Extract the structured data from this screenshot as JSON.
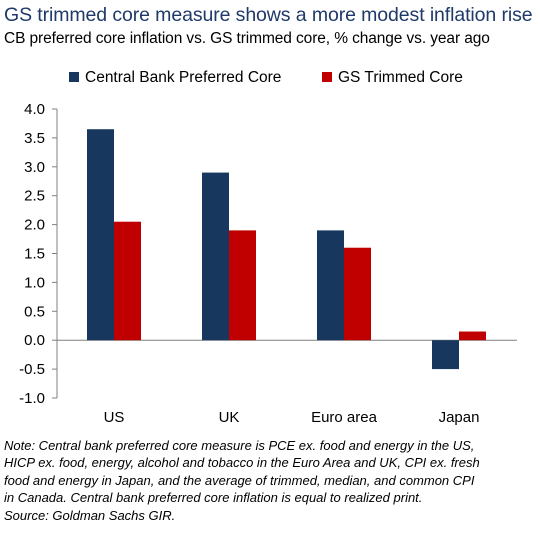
{
  "title": "GS trimmed core measure shows a more modest inflation rise",
  "subtitle": "CB preferred core inflation vs. GS trimmed core, % change vs. year ago",
  "note_lines": [
    "Note: Central bank preferred core measure is PCE ex. food and energy in the US,",
    "HICP ex. food, energy, alcohol and tobacco in the Euro Area and UK, CPI ex. fresh",
    "food and energy in Japan, and the average of trimmed, median, and common CPI",
    "in Canada. Central bank preferred core inflation is equal to realized print.",
    "Source: Goldman Sachs GIR."
  ],
  "colors": {
    "title": "#1f3a68",
    "series_1": "#17375e",
    "series_2": "#c00000"
  },
  "chart_data": {
    "type": "bar",
    "categories": [
      "US",
      "UK",
      "Euro area",
      "Japan"
    ],
    "series": [
      {
        "name": "Central Bank Preferred Core",
        "color": "#17375e",
        "values": [
          3.65,
          2.9,
          1.9,
          -0.5
        ]
      },
      {
        "name": "GS Trimmed Core",
        "color": "#c00000",
        "values": [
          2.05,
          1.9,
          1.6,
          0.15
        ]
      }
    ],
    "ylim": [
      -1.0,
      4.0
    ],
    "yticks": [
      "4.0",
      "3.5",
      "3.0",
      "2.5",
      "2.0",
      "1.5",
      "1.0",
      "0.5",
      "0.0",
      "-0.5",
      "-1.0"
    ],
    "ytick_values": [
      4.0,
      3.5,
      3.0,
      2.5,
      2.0,
      1.5,
      1.0,
      0.5,
      0.0,
      -0.5,
      -1.0
    ],
    "legend_position": "top",
    "grid": false
  }
}
